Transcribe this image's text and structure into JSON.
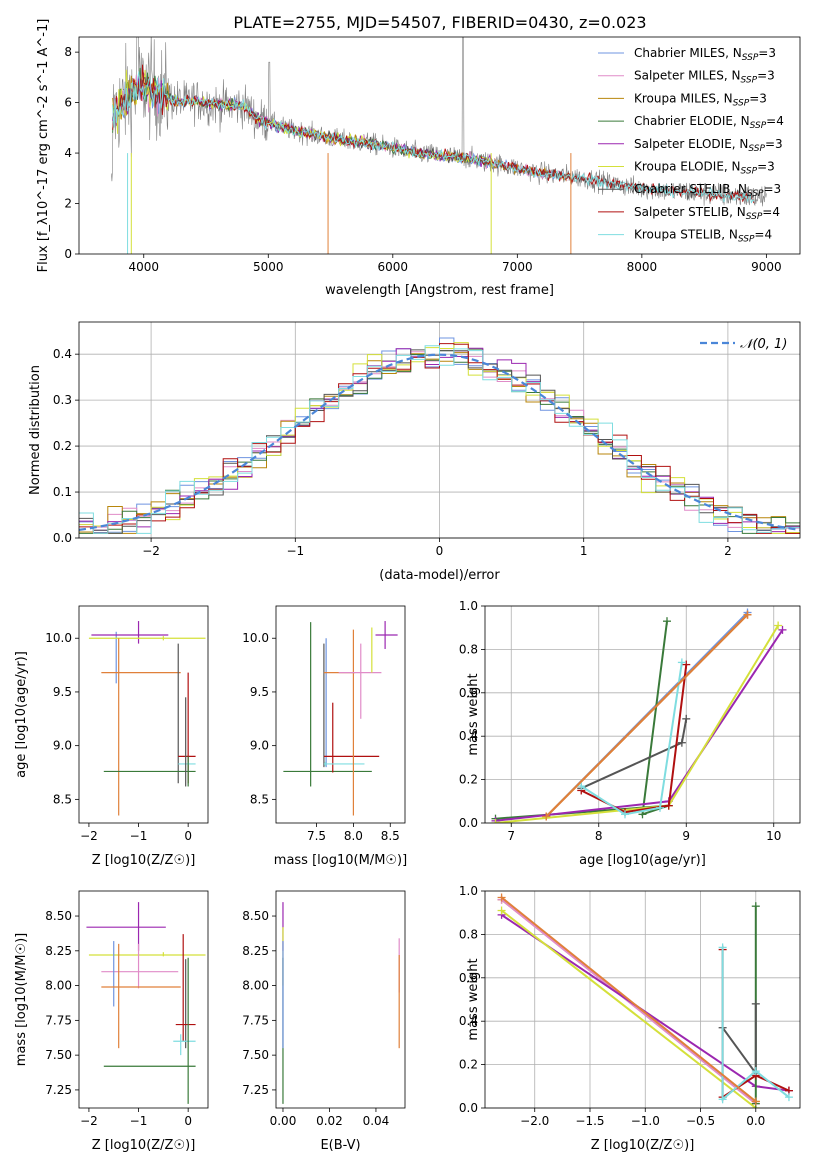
{
  "colors": {
    "Chabrier MILES": "#6f94e0",
    "Salpeter MILES": "#e08cc8",
    "Kroupa MILES": "#b8860b",
    "Chabrier ELODIE": "#3a7a3a",
    "Salpeter ELODIE": "#9b27b0",
    "Kroupa ELODIE": "#d4e03a",
    "Chabrier STELIB": "#555555",
    "Salpeter STELIB": "#b01010",
    "Kroupa STELIB": "#7fdde0",
    "orange": "#e0803a",
    "data": "#808080"
  },
  "chart_data": [
    {
      "id": "spectrum",
      "type": "line",
      "title": "PLATE=2755, MJD=54507, FIBERID=0430, z=0.023",
      "xlabel": "wavelength [Angstrom, rest frame]",
      "ylabel": "Flux [f_λ10^-17 erg cm^-2 s^-1 A^-1]",
      "xlim": [
        3480,
        9270
      ],
      "ylim": [
        0,
        8.6
      ],
      "xticks": [
        4000,
        5000,
        6000,
        7000,
        8000,
        9000
      ],
      "yticks": [
        0,
        2,
        4,
        6,
        8
      ],
      "legend_position": "right",
      "legend": [
        {
          "base": "Chabrier MILES, N",
          "sub": "SSP",
          "tail": "=3"
        },
        {
          "base": "Salpeter MILES, N",
          "sub": "SSP",
          "tail": "=3"
        },
        {
          "base": "Kroupa MILES, N",
          "sub": "SSP",
          "tail": "=3"
        },
        {
          "base": "Chabrier ELODIE, N",
          "sub": "SSP",
          "tail": "=4"
        },
        {
          "base": "Salpeter ELODIE, N",
          "sub": "SSP",
          "tail": "=3"
        },
        {
          "base": "Kroupa ELODIE, N",
          "sub": "SSP",
          "tail": "=3"
        },
        {
          "base": "Chabrier STELIB, N",
          "sub": "SSP",
          "tail": "=3"
        },
        {
          "base": "Salpeter STELIB, N",
          "sub": "SSP",
          "tail": "=4"
        },
        {
          "base": "Kroupa STELIB, N",
          "sub": "SSP",
          "tail": "=4"
        }
      ],
      "continuum": [
        [
          3750,
          5.5
        ],
        [
          3900,
          6.4
        ],
        [
          4000,
          6.7
        ],
        [
          4100,
          6.5
        ],
        [
          4200,
          6.2
        ],
        [
          4300,
          6.0
        ],
        [
          4400,
          6.1
        ],
        [
          4500,
          6.0
        ],
        [
          4600,
          5.9
        ],
        [
          4700,
          5.9
        ],
        [
          4800,
          5.9
        ],
        [
          4900,
          5.4
        ],
        [
          5000,
          5.2
        ],
        [
          5200,
          4.9
        ],
        [
          5400,
          4.7
        ],
        [
          5600,
          4.5
        ],
        [
          5800,
          4.4
        ],
        [
          6000,
          4.2
        ],
        [
          6200,
          4.0
        ],
        [
          6400,
          3.9
        ],
        [
          6600,
          3.8
        ],
        [
          6800,
          3.6
        ],
        [
          7000,
          3.4
        ],
        [
          7200,
          3.2
        ],
        [
          7400,
          3.1
        ],
        [
          7600,
          2.95
        ],
        [
          7800,
          2.75
        ],
        [
          8000,
          2.6
        ],
        [
          8200,
          2.5
        ],
        [
          8400,
          2.45
        ],
        [
          8600,
          2.35
        ],
        [
          8800,
          2.3
        ],
        [
          9000,
          2.2
        ]
      ]
    },
    {
      "id": "residuals",
      "type": "line",
      "xlabel": "(data-model)/error",
      "ylabel": "Normed distribution",
      "xlim": [
        -2.5,
        2.5
      ],
      "ylim": [
        0,
        0.47
      ],
      "xticks": [
        -2,
        -1,
        0,
        1,
        2
      ],
      "yticks": [
        0.0,
        0.1,
        0.2,
        0.3,
        0.4
      ],
      "grid": true,
      "legend": "𝒩(0, 1)",
      "legend_position": "top-right",
      "curve": "standard normal",
      "bin_width": 0.1
    },
    {
      "id": "age-vs-Z",
      "type": "scatter",
      "xlabel": "Z [log10(Z/Z☉)]",
      "ylabel": "age [log10(age/yr)]",
      "xlim": [
        -2.2,
        0.4
      ],
      "ylim": [
        8.28,
        10.3
      ],
      "xticks": [
        -2,
        -1,
        0
      ],
      "yticks": [
        8.5,
        9.0,
        9.5,
        10.0
      ],
      "crosses": [
        {
          "c": "Chabrier MILES",
          "x": -1.45,
          "y": 9.85,
          "xl": -1.45,
          "xh": -1.45,
          "yl": 9.58,
          "yh": 10.06
        },
        {
          "c": "Salpeter ELODIE",
          "x": -1.0,
          "y": 10.03,
          "xl": -1.95,
          "xh": -0.4,
          "yl": 9.95,
          "yh": 10.16
        },
        {
          "c": "Kroupa ELODIE",
          "x": -0.5,
          "y": 10.0,
          "xl": -2.0,
          "xh": 0.35,
          "yl": 9.98,
          "yh": 10.02
        },
        {
          "c": "orange",
          "x": -1.4,
          "y": 9.68,
          "xl": -1.75,
          "xh": -0.15,
          "yl": 8.35,
          "yh": 10.0
        },
        {
          "c": "Chabrier STELIB",
          "x": -0.2,
          "y": 9.68,
          "xl": -0.2,
          "xh": -0.2,
          "yl": 8.65,
          "yh": 9.95
        },
        {
          "c": "Salpeter STELIB",
          "x": 0.0,
          "y": 8.9,
          "xl": -0.2,
          "xh": 0.15,
          "yl": 8.65,
          "yh": 9.68
        },
        {
          "c": "Kroupa STELIB",
          "x": 0.0,
          "y": 8.83,
          "xl": -0.2,
          "xh": 0.15,
          "yl": 8.82,
          "yh": 8.85
        },
        {
          "c": "Chabrier ELODIE",
          "x": 0.0,
          "y": 8.76,
          "xl": -1.7,
          "xh": 0.15,
          "yl": 8.62,
          "yh": 8.9
        },
        {
          "c": "Chabrier STELIB",
          "x": -0.05,
          "y": 9.0,
          "xl": -0.05,
          "xh": -0.05,
          "yl": 8.62,
          "yh": 9.45
        }
      ]
    },
    {
      "id": "age-vs-mass",
      "type": "scatter",
      "xlabel": "mass [log10(M/M☉)]",
      "xlim": [
        6.95,
        8.7
      ],
      "ylim": [
        8.28,
        10.3
      ],
      "xticks": [
        7.5,
        8.0,
        8.5
      ],
      "yticks": [
        8.5,
        9.0,
        9.5,
        10.0
      ],
      "crosses": [
        {
          "c": "Chabrier ELODIE",
          "x": 7.42,
          "y": 8.76,
          "xl": 7.05,
          "xh": 8.25,
          "yl": 8.62,
          "yh": 10.15
        },
        {
          "c": "Chabrier MILES",
          "x": 7.63,
          "y": 9.9,
          "xl": 7.63,
          "xh": 7.63,
          "yl": 8.8,
          "yh": 10.0
        },
        {
          "c": "Chabrier STELIB",
          "x": 7.6,
          "y": 9.68,
          "xl": 7.6,
          "xh": 7.6,
          "yl": 8.8,
          "yh": 9.95
        },
        {
          "c": "Salpeter STELIB",
          "x": 7.72,
          "y": 8.9,
          "xl": 7.6,
          "xh": 8.35,
          "yl": 8.75,
          "yh": 9.4
        },
        {
          "c": "Kroupa STELIB",
          "x": 7.62,
          "y": 8.83,
          "xl": 7.6,
          "xh": 8.15,
          "yl": 8.81,
          "yh": 8.85
        },
        {
          "c": "orange",
          "x": 8.0,
          "y": 9.68,
          "xl": 7.6,
          "xh": 8.02,
          "yl": 8.35,
          "yh": 10.08
        },
        {
          "c": "Salpeter MILES",
          "x": 8.1,
          "y": 9.68,
          "xl": 7.8,
          "xh": 8.38,
          "yl": 9.25,
          "yh": 9.95
        },
        {
          "c": "Kroupa ELODIE",
          "x": 8.25,
          "y": 10.03,
          "xl": 8.25,
          "xh": 8.25,
          "yl": 9.68,
          "yh": 10.1
        },
        {
          "c": "Salpeter ELODIE",
          "x": 8.43,
          "y": 10.03,
          "xl": 8.3,
          "xh": 8.6,
          "yl": 9.9,
          "yh": 10.16
        }
      ]
    },
    {
      "id": "mass-weight-vs-age",
      "type": "line",
      "xlabel": "age [log10(age/yr)]",
      "ylabel": "mass weight",
      "xlim": [
        6.7,
        10.3
      ],
      "ylim": [
        0,
        1
      ],
      "xticks": [
        7,
        8,
        9,
        10
      ],
      "yticks": [
        0.0,
        0.2,
        0.4,
        0.6,
        0.8,
        1.0
      ],
      "grid": true,
      "series": [
        {
          "c": "Chabrier MILES",
          "pts": [
            [
              7.4,
              0.03
            ],
            [
              9.7,
              0.97
            ]
          ]
        },
        {
          "c": "Salpeter MILES",
          "pts": [
            [
              7.4,
              0.03
            ],
            [
              9.7,
              0.96
            ]
          ]
        },
        {
          "c": "Kroupa MILES",
          "pts": [
            [
              7.4,
              0.03
            ],
            [
              9.7,
              0.96
            ]
          ]
        },
        {
          "c": "Chabrier ELODIE",
          "pts": [
            [
              6.82,
              0.02
            ],
            [
              8.8,
              0.08
            ],
            [
              8.5,
              0.04
            ],
            [
              8.78,
              0.93
            ]
          ]
        },
        {
          "c": "Salpeter ELODIE",
          "pts": [
            [
              6.82,
              0.01
            ],
            [
              8.8,
              0.1
            ],
            [
              10.1,
              0.89
            ]
          ]
        },
        {
          "c": "Kroupa ELODIE",
          "pts": [
            [
              6.82,
              0.0
            ],
            [
              8.8,
              0.08
            ],
            [
              10.05,
              0.91
            ]
          ]
        },
        {
          "c": "Chabrier STELIB",
          "pts": [
            [
              7.8,
              0.16
            ],
            [
              8.95,
              0.37
            ],
            [
              9.0,
              0.48
            ]
          ]
        },
        {
          "c": "Salpeter STELIB",
          "pts": [
            [
              7.8,
              0.15
            ],
            [
              8.3,
              0.05
            ],
            [
              8.8,
              0.08
            ],
            [
              9.0,
              0.73
            ]
          ]
        },
        {
          "c": "Kroupa STELIB",
          "pts": [
            [
              7.8,
              0.17
            ],
            [
              8.3,
              0.04
            ],
            [
              8.7,
              0.07
            ],
            [
              8.95,
              0.74
            ]
          ]
        },
        {
          "c": "orange",
          "pts": [
            [
              7.4,
              0.03
            ],
            [
              9.7,
              0.96
            ]
          ]
        }
      ]
    },
    {
      "id": "mass-vs-Z",
      "type": "scatter",
      "xlabel": "Z [log10(Z/Z☉)]",
      "ylabel": "mass [log10(M/M☉)]",
      "xlim": [
        -2.2,
        0.4
      ],
      "ylim": [
        7.12,
        8.68
      ],
      "xticks": [
        -2,
        -1,
        0
      ],
      "yticks": [
        7.25,
        7.5,
        7.75,
        8.0,
        8.25,
        8.5
      ],
      "crosses": [
        {
          "c": "Salpeter ELODIE",
          "x": -1.0,
          "y": 8.42,
          "xl": -2.05,
          "xh": -0.45,
          "yl": 8.25,
          "yh": 8.6
        },
        {
          "c": "Kroupa ELODIE",
          "x": -0.5,
          "y": 8.22,
          "xl": -2.0,
          "xh": 0.35,
          "yl": 8.21,
          "yh": 8.24
        },
        {
          "c": "Salpeter MILES",
          "x": -1.0,
          "y": 8.1,
          "xl": -1.75,
          "xh": -0.2,
          "yl": 7.98,
          "yh": 8.3
        },
        {
          "c": "Chabrier MILES",
          "x": -1.5,
          "y": 8.1,
          "xl": -1.5,
          "xh": -1.5,
          "yl": 7.85,
          "yh": 8.32
        },
        {
          "c": "orange",
          "x": -1.4,
          "y": 7.99,
          "xl": -1.75,
          "xh": -0.15,
          "yl": 7.55,
          "yh": 8.3
        },
        {
          "c": "Chabrier STELIB",
          "x": -0.05,
          "y": 7.6,
          "xl": -0.05,
          "xh": -0.05,
          "yl": 7.55,
          "yh": 8.19
        },
        {
          "c": "Salpeter STELIB",
          "x": -0.1,
          "y": 7.72,
          "xl": -0.25,
          "xh": 0.15,
          "yl": 7.6,
          "yh": 8.37
        },
        {
          "c": "Kroupa STELIB",
          "x": -0.15,
          "y": 7.6,
          "xl": -0.3,
          "xh": 0.15,
          "yl": 7.5,
          "yh": 7.65
        },
        {
          "c": "Chabrier ELODIE",
          "x": 0.0,
          "y": 7.42,
          "xl": -1.7,
          "xh": 0.15,
          "yl": 7.15,
          "yh": 8.2
        }
      ]
    },
    {
      "id": "mass-vs-EBV",
      "type": "scatter",
      "xlabel": "E(B-V)",
      "xlim": [
        -0.003,
        0.0525
      ],
      "ylim": [
        7.12,
        8.68
      ],
      "xticks": [
        0.0,
        0.02,
        0.04
      ],
      "yticks": [
        7.25,
        7.5,
        7.75,
        8.0,
        8.25,
        8.5
      ],
      "crosses": [
        {
          "c": "Salpeter ELODIE",
          "x": 0.0,
          "y": 8.42,
          "xl": 0.0,
          "xh": 0.0,
          "yl": 8.25,
          "yh": 8.6
        },
        {
          "c": "Kroupa ELODIE",
          "x": 0.0,
          "y": 8.22,
          "xl": 0.0,
          "xh": 0.0,
          "yl": 8.0,
          "yh": 8.42
        },
        {
          "c": "Chabrier ELODIE",
          "x": 0.0,
          "y": 7.42,
          "xl": 0.0,
          "xh": 0.0,
          "yl": 7.15,
          "yh": 8.2
        },
        {
          "c": "Chabrier MILES",
          "x": 0.0,
          "y": 7.8,
          "xl": 0.0,
          "xh": 0.0,
          "yl": 7.55,
          "yh": 8.32
        },
        {
          "c": "Salpeter MILES",
          "x": 0.05,
          "y": 8.1,
          "xl": 0.05,
          "xh": 0.05,
          "yl": 7.95,
          "yh": 8.34
        },
        {
          "c": "orange",
          "x": 0.05,
          "y": 7.99,
          "xl": 0.05,
          "xh": 0.05,
          "yl": 7.55,
          "yh": 8.22
        }
      ]
    },
    {
      "id": "mass-weight-vs-Z",
      "type": "line",
      "xlabel": "Z [log10(Z/Z☉)]",
      "ylabel": "mass weight",
      "xlim": [
        -2.45,
        0.4
      ],
      "ylim": [
        0,
        1
      ],
      "xticks": [
        -2.0,
        -1.5,
        -1.0,
        -0.5,
        0.0
      ],
      "yticks": [
        0.0,
        0.2,
        0.4,
        0.6,
        0.8,
        1.0
      ],
      "grid": true,
      "series": [
        {
          "c": "Kroupa MILES",
          "pts": [
            [
              -2.3,
              0.96
            ],
            [
              0.0,
              0.03
            ]
          ]
        },
        {
          "c": "Salpeter MILES",
          "pts": [
            [
              -2.3,
              0.96
            ],
            [
              0.0,
              0.02
            ]
          ]
        },
        {
          "c": "Salpeter ELODIE",
          "pts": [
            [
              -2.3,
              0.89
            ],
            [
              0.0,
              0.1
            ],
            [
              0.3,
              0.08
            ]
          ]
        },
        {
          "c": "Kroupa ELODIE",
          "pts": [
            [
              -2.3,
              0.91
            ],
            [
              0.0,
              0.0
            ]
          ]
        },
        {
          "c": "Chabrier ELODIE",
          "pts": [
            [
              0.0,
              0.93
            ],
            [
              0.0,
              0.02
            ]
          ]
        },
        {
          "c": "Chabrier STELIB",
          "pts": [
            [
              -0.3,
              0.37
            ],
            [
              0.0,
              0.16
            ],
            [
              0.0,
              0.48
            ]
          ]
        },
        {
          "c": "Salpeter STELIB",
          "pts": [
            [
              -0.3,
              0.73
            ],
            [
              -0.3,
              0.05
            ],
            [
              0.0,
              0.15
            ],
            [
              0.3,
              0.08
            ]
          ]
        },
        {
          "c": "Kroupa STELIB",
          "pts": [
            [
              -0.3,
              0.74
            ],
            [
              -0.3,
              0.04
            ],
            [
              0.0,
              0.17
            ],
            [
              0.3,
              0.05
            ]
          ]
        },
        {
          "c": "orange",
          "pts": [
            [
              -2.3,
              0.97
            ],
            [
              0.0,
              0.03
            ]
          ]
        }
      ]
    }
  ]
}
